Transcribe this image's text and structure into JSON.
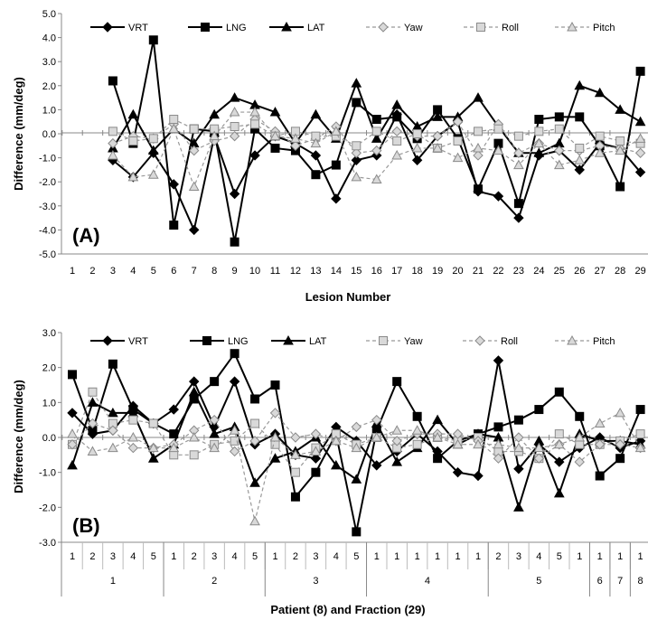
{
  "chart_data": [
    {
      "type": "line",
      "panel_label": "(A)",
      "xlabel": "Lesion Number",
      "ylabel": "Difference (mm/deg)",
      "ylim": [
        -5,
        5
      ],
      "ytick_labels": [
        "5.0",
        "4.0",
        "3.0",
        "2.0",
        "1.0",
        "0.0",
        "-1.0",
        "-2.0",
        "-3.0",
        "-4.0",
        "-5.0"
      ],
      "categories": [
        "1",
        "2",
        "3",
        "4",
        "5",
        "6",
        "7",
        "8",
        "9",
        "10",
        "11",
        "12",
        "13",
        "14",
        "15",
        "16",
        "17",
        "18",
        "19",
        "20",
        "21",
        "22",
        "23",
        "24",
        "25",
        "26",
        "27",
        "28",
        "29"
      ],
      "grid": false,
      "legend": "top",
      "series": [
        {
          "name": "VRT",
          "marker": "diamond",
          "dash": false,
          "color": "#000000",
          "values": [
            null,
            null,
            -1.1,
            -1.8,
            -0.8,
            -2.1,
            -4.0,
            -0.1,
            -2.5,
            -0.9,
            -0.1,
            -0.4,
            -0.9,
            -2.7,
            -1.1,
            -0.9,
            0.8,
            -1.1,
            -0.1,
            0.5,
            -2.4,
            -2.6,
            -3.5,
            -0.9,
            -0.7,
            -1.5,
            -0.4,
            -0.6,
            -1.6
          ]
        },
        {
          "name": "LNG",
          "marker": "square",
          "dash": false,
          "color": "#000000",
          "values": [
            null,
            null,
            2.2,
            -0.4,
            3.9,
            -3.8,
            0.2,
            0.1,
            -4.5,
            0.2,
            -0.6,
            -0.7,
            -1.7,
            -1.3,
            1.3,
            0.6,
            0.7,
            -0.2,
            1.0,
            -0.2,
            -2.3,
            -0.4,
            -2.9,
            0.6,
            0.7,
            0.7,
            -0.5,
            -2.2,
            2.6
          ]
        },
        {
          "name": "LAT",
          "marker": "triangle",
          "dash": false,
          "color": "#000000",
          "values": [
            null,
            null,
            -0.6,
            0.8,
            -0.7,
            0.2,
            -0.4,
            0.8,
            1.5,
            1.2,
            0.9,
            -0.4,
            0.8,
            -0.2,
            2.1,
            -0.2,
            1.2,
            0.3,
            0.7,
            0.7,
            1.5,
            0.3,
            -0.8,
            -0.8,
            -0.4,
            2.0,
            1.7,
            1.0,
            0.5
          ]
        },
        {
          "name": "Yaw",
          "marker": "diamond-open",
          "dash": true,
          "color": "#999999",
          "values": [
            null,
            null,
            -0.4,
            -0.1,
            -0.2,
            0.4,
            -0.7,
            -0.3,
            -0.1,
            0.6,
            0.1,
            -0.5,
            -0.2,
            0.3,
            -0.8,
            -0.7,
            0.1,
            -0.1,
            -0.1,
            0.5,
            -0.9,
            0.4,
            -0.8,
            -0.4,
            -0.7,
            -0.7,
            -0.5,
            -0.6,
            -0.8
          ]
        },
        {
          "name": "Roll",
          "marker": "square-open",
          "dash": true,
          "color": "#999999",
          "values": [
            null,
            null,
            0.1,
            -0.3,
            -0.2,
            0.6,
            0.2,
            0.2,
            0.3,
            0.4,
            -0.1,
            0.1,
            -0.1,
            -0.1,
            -0.5,
            0.1,
            -0.3,
            0.0,
            -0.6,
            -0.3,
            0.1,
            0.2,
            -0.1,
            0.1,
            0.2,
            -0.6,
            -0.1,
            -0.3,
            -0.4
          ]
        },
        {
          "name": "Pitch",
          "marker": "triangle-open",
          "dash": true,
          "color": "#999999",
          "values": [
            null,
            null,
            -0.9,
            -1.8,
            -1.7,
            0.2,
            -2.2,
            -0.1,
            0.9,
            0.9,
            -0.1,
            -0.2,
            -0.4,
            0.1,
            -1.8,
            -1.9,
            -0.9,
            -0.6,
            -0.6,
            -1.0,
            -0.6,
            -0.7,
            -1.3,
            -0.4,
            -1.3,
            -1.1,
            -0.8,
            -0.7,
            -0.2
          ]
        }
      ]
    },
    {
      "type": "line",
      "panel_label": "(B)",
      "xlabel": "Patient (8) and Fraction (29)",
      "ylabel": "Difference (mm/deg)",
      "ylim": [
        -3,
        3
      ],
      "ytick_labels": [
        "3.0",
        "2.0",
        "1.0",
        "0.0",
        "-1.0",
        "-2.0",
        "-3.0"
      ],
      "categories": [
        "1",
        "2",
        "3",
        "4",
        "5",
        "1",
        "2",
        "3",
        "4",
        "5",
        "1",
        "2",
        "3",
        "4",
        "5",
        "1",
        "1",
        "1",
        "1",
        "1",
        "1",
        "2",
        "3",
        "4",
        "5",
        "1",
        "1",
        "1",
        "1"
      ],
      "groups": [
        {
          "label": "1",
          "count": 5
        },
        {
          "label": "2",
          "count": 5
        },
        {
          "label": "3",
          "count": 5
        },
        {
          "label": "4",
          "count": 6
        },
        {
          "label": "5",
          "count": 5
        },
        {
          "label": "6",
          "count": 1
        },
        {
          "label": "7",
          "count": 1
        },
        {
          "label": "8",
          "count": 1
        }
      ],
      "grid": false,
      "legend": "top",
      "series": [
        {
          "name": "VRT",
          "marker": "diamond",
          "dash": false,
          "color": "#000000",
          "values": [
            0.7,
            0.1,
            0.2,
            0.9,
            0.4,
            0.8,
            1.6,
            0.3,
            1.6,
            -0.2,
            0.1,
            -0.5,
            -0.6,
            0.3,
            -0.1,
            -0.8,
            -0.4,
            0.1,
            -0.4,
            -1.0,
            -1.1,
            2.2,
            -0.9,
            -0.2,
            -0.7,
            -0.3,
            0.0,
            -0.3,
            -0.1
          ]
        },
        {
          "name": "LNG",
          "marker": "square",
          "dash": false,
          "color": "#000000",
          "values": [
            1.8,
            0.2,
            2.1,
            0.8,
            0.4,
            0.1,
            1.1,
            1.6,
            2.4,
            1.1,
            1.5,
            -1.7,
            -1.0,
            0.1,
            -2.7,
            0.2,
            1.6,
            0.6,
            -0.6,
            -0.1,
            0.1,
            0.3,
            0.5,
            0.8,
            1.3,
            0.6,
            -1.1,
            -0.6,
            0.8
          ]
        },
        {
          "name": "LAT",
          "marker": "triangle",
          "dash": false,
          "color": "#000000",
          "values": [
            -0.8,
            1.0,
            0.7,
            0.7,
            -0.6,
            -0.2,
            1.3,
            0.1,
            0.3,
            -1.3,
            -0.6,
            -0.4,
            0.0,
            -0.8,
            -1.2,
            0.4,
            -0.7,
            -0.3,
            0.5,
            -0.2,
            0.1,
            0.0,
            -2.0,
            -0.1,
            -1.6,
            0.1,
            -0.1,
            -0.1,
            -0.2
          ]
        },
        {
          "name": "Yaw",
          "marker": "square-open",
          "dash": true,
          "color": "#999999",
          "values": [
            -0.2,
            1.3,
            0.4,
            0.5,
            0.4,
            -0.5,
            -0.5,
            -0.2,
            -0.1,
            0.4,
            -0.2,
            -1.0,
            -0.3,
            0.1,
            -0.2,
            0.0,
            -0.3,
            -0.2,
            0.0,
            -0.1,
            0.0,
            -0.4,
            -0.4,
            -0.6,
            0.1,
            -0.2,
            -0.2,
            -0.1,
            0.1
          ]
        },
        {
          "name": "Roll",
          "marker": "diamond-open",
          "dash": true,
          "color": "#999999",
          "values": [
            -0.2,
            0.4,
            0.2,
            -0.3,
            -0.3,
            -0.2,
            0.2,
            0.5,
            -0.4,
            -0.1,
            0.7,
            0.0,
            0.1,
            -0.1,
            0.3,
            0.5,
            -0.1,
            0.1,
            0.1,
            0.1,
            -0.1,
            -0.6,
            0.0,
            -0.6,
            -0.2,
            -0.7,
            -0.2,
            -0.2,
            -0.3
          ]
        },
        {
          "name": "Pitch",
          "marker": "triangle-open",
          "dash": true,
          "color": "#999999",
          "values": [
            0.1,
            -0.4,
            -0.3,
            0.0,
            -0.3,
            -0.3,
            0.0,
            -0.3,
            0.2,
            -2.4,
            0.0,
            -0.5,
            -0.4,
            -0.1,
            -0.3,
            0.0,
            0.2,
            0.2,
            0.0,
            -0.2,
            -0.2,
            -0.2,
            -0.3,
            -0.3,
            -0.2,
            0.0,
            0.4,
            0.7,
            -0.3
          ]
        }
      ]
    }
  ]
}
